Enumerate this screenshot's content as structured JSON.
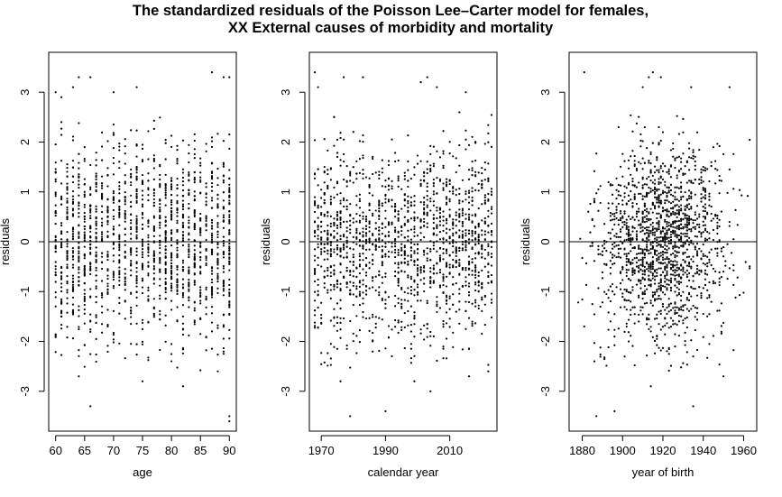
{
  "figure": {
    "title_line1": "The standardized residuals of the Poisson Lee–Carter model for females,",
    "title_line2": "XX External causes of morbidity and mortality"
  },
  "chart_data": [
    {
      "type": "scatter",
      "title": "",
      "xlabel": "age",
      "ylabel": "residuals",
      "xlim": [
        58.8,
        91.2
      ],
      "ylim": [
        -3.8,
        3.8
      ],
      "xticks": [
        60,
        65,
        70,
        75,
        80,
        85,
        90
      ],
      "yticks": [
        -3,
        -2,
        -1,
        0,
        1,
        2,
        3
      ],
      "reference_line_y": 0,
      "grid": false,
      "legend": "none",
      "point_color": "#000000",
      "x_values_integer_range": [
        60,
        90
      ],
      "n_points": 1550,
      "residual_sd": 1.0,
      "points": [
        [
          60,
          3.0
        ],
        [
          61,
          2.9
        ],
        [
          61,
          2.4
        ],
        [
          63,
          3.1
        ],
        [
          64,
          3.3
        ],
        [
          66,
          3.3
        ],
        [
          70,
          3.0
        ],
        [
          74,
          3.1
        ],
        [
          87,
          3.4
        ],
        [
          89,
          3.3
        ],
        [
          90,
          3.3
        ],
        [
          66,
          -3.3
        ],
        [
          64,
          -2.7
        ],
        [
          75,
          -2.8
        ],
        [
          82,
          -2.9
        ],
        [
          90,
          -3.5
        ],
        [
          90,
          -3.6
        ],
        [
          88,
          -2.6
        ]
      ]
    },
    {
      "type": "scatter",
      "title": "",
      "xlabel": "calendar year",
      "ylabel": "residuals",
      "xlim": [
        1966.3,
        2024.7
      ],
      "ylim": [
        -3.8,
        3.8
      ],
      "xticks": [
        1970,
        1990,
        2010
      ],
      "yticks": [
        -3,
        -2,
        -1,
        0,
        1,
        2,
        3
      ],
      "reference_line_y": 0,
      "grid": false,
      "legend": "none",
      "point_color": "#000000",
      "x_values_integer_range": [
        1968,
        2023
      ],
      "n_points": 1550,
      "residual_sd": 1.0,
      "points": [
        [
          1968,
          3.4
        ],
        [
          1969,
          3.1
        ],
        [
          1977,
          3.3
        ],
        [
          1983,
          3.3
        ],
        [
          2001,
          3.2
        ],
        [
          2003,
          3.3
        ],
        [
          2006,
          3.1
        ],
        [
          2015,
          3.0
        ],
        [
          1976,
          -2.8
        ],
        [
          1979,
          -3.5
        ],
        [
          1990,
          -3.4
        ],
        [
          1999,
          -2.8
        ],
        [
          2004,
          -3.0
        ],
        [
          2016,
          -2.7
        ],
        [
          2022,
          -2.6
        ]
      ]
    },
    {
      "type": "scatter",
      "title": "",
      "xlabel": "year of birth",
      "ylabel": "residuals",
      "xlim": [
        1873.5,
        1966.5
      ],
      "ylim": [
        -3.8,
        3.8
      ],
      "xticks": [
        1880,
        1900,
        1920,
        1940,
        1960
      ],
      "yticks": [
        -3,
        -2,
        -1,
        0,
        1,
        2,
        3
      ],
      "reference_line_y": 0,
      "grid": false,
      "legend": "none",
      "point_color": "#000000",
      "x_values_integer_range": [
        1878,
        1963
      ],
      "n_points": 1550,
      "residual_sd": 1.0,
      "points": [
        [
          1881,
          3.4
        ],
        [
          1910,
          3.1
        ],
        [
          1913,
          3.3
        ],
        [
          1915,
          3.4
        ],
        [
          1919,
          3.3
        ],
        [
          1934,
          3.1
        ],
        [
          1953,
          3.1
        ],
        [
          1886,
          -2.4
        ],
        [
          1887,
          -3.5
        ],
        [
          1896,
          -3.4
        ],
        [
          1914,
          -2.9
        ],
        [
          1935,
          -3.3
        ],
        [
          1950,
          -2.7
        ]
      ]
    }
  ]
}
